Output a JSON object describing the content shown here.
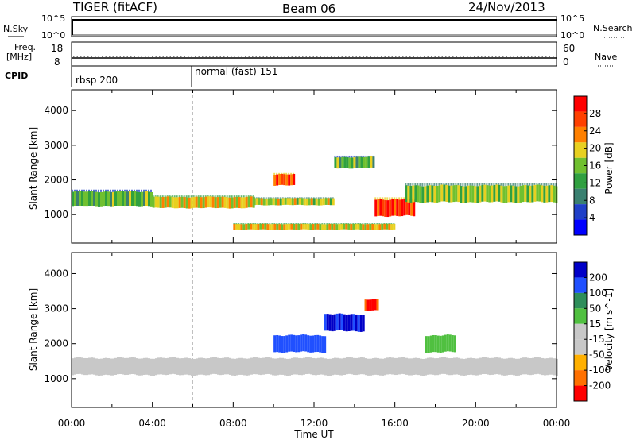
{
  "header": {
    "station": "TIGER (fitACF)",
    "beam": "Beam 06",
    "date": "24/Nov/2013"
  },
  "panels": {
    "nsky": {
      "left_label": "N.Sky",
      "right_label": "N.Search",
      "left_ticks": [
        "10^5",
        "10^0"
      ],
      "right_ticks": [
        "10^5",
        "10^0"
      ]
    },
    "freq": {
      "left_label_top": "Freq.",
      "left_label_bottom": "[MHz]",
      "left_ticks": [
        "18",
        "8"
      ],
      "right_ticks": [
        "60",
        "0"
      ],
      "right_label": "Nave"
    },
    "cpid": {
      "label": "CPID",
      "segments": [
        {
          "name": "rbsp 200",
          "start_hour": 0
        },
        {
          "name": "normal (fast) 151",
          "start_hour": 6.0
        }
      ]
    }
  },
  "colors": {
    "power": [
      "#0000ff",
      "#2040c8",
      "#3a8070",
      "#30a040",
      "#70c030",
      "#e8d020",
      "#ff8000",
      "#ff4000",
      "#ff0000"
    ],
    "velocity": [
      "#0000c8",
      "#2050ff",
      "#2e8e5a",
      "#50c040",
      "#c8c8c8",
      "#c8c8c8",
      "#ffb000",
      "#ff7000",
      "#ff0000"
    ]
  },
  "chart_data": [
    {
      "type": "heatmap",
      "title": "",
      "xlabel": "Time UT",
      "ylabel": "Slant Range [km]",
      "x_range": [
        "00:00",
        "24:00"
      ],
      "x_ticks": [
        "00:00",
        "04:00",
        "08:00",
        "12:00",
        "16:00",
        "20:00",
        "00:00"
      ],
      "ylim": [
        180,
        4600
      ],
      "y_ticks": [
        1000,
        2000,
        3000,
        4000
      ],
      "colorbar": {
        "label": "Power [dB]",
        "ticks": [
          4,
          8,
          12,
          16,
          20,
          24,
          28
        ],
        "range": [
          0,
          32
        ]
      },
      "echo_bands": [
        {
          "start_hour": 0.0,
          "end_hour": 4.0,
          "range_km": [
            1180,
            1720
          ],
          "level_db": 14
        },
        {
          "start_hour": 4.0,
          "end_hour": 9.0,
          "range_km": [
            1150,
            1550
          ],
          "level_db": 20
        },
        {
          "start_hour": 9.0,
          "end_hour": 13.0,
          "range_km": [
            1250,
            1500
          ],
          "level_db": 18
        },
        {
          "start_hour": 10.0,
          "end_hour": 11.0,
          "range_km": [
            1800,
            2200
          ],
          "level_db": 26
        },
        {
          "start_hour": 13.0,
          "end_hour": 15.0,
          "range_km": [
            2300,
            2700
          ],
          "level_db": 14
        },
        {
          "start_hour": 15.0,
          "end_hour": 17.0,
          "range_km": [
            900,
            1500
          ],
          "level_db": 28
        },
        {
          "start_hour": 16.5,
          "end_hour": 24.0,
          "range_km": [
            1300,
            1900
          ],
          "level_db": 16
        },
        {
          "start_hour": 8.0,
          "end_hour": 16.0,
          "range_km": [
            550,
            750
          ],
          "level_db": 20
        }
      ]
    },
    {
      "type": "heatmap",
      "title": "",
      "xlabel": "Time UT",
      "ylabel": "Slant Range [km]",
      "x_range": [
        "00:00",
        "24:00"
      ],
      "x_ticks": [
        "00:00",
        "04:00",
        "08:00",
        "12:00",
        "16:00",
        "20:00",
        "00:00"
      ],
      "ylim": [
        180,
        4600
      ],
      "y_ticks": [
        1000,
        2000,
        3000,
        4000
      ],
      "colorbar": {
        "label": "Velocity [m s^-1]",
        "ticks": [
          200,
          100,
          50,
          15,
          -15,
          -50,
          -100,
          -200
        ],
        "range": [
          -250,
          250
        ]
      },
      "echo_bands": [
        {
          "start_hour": 0.0,
          "end_hour": 24.0,
          "range_km": [
            1050,
            1650
          ],
          "velocity": 0
        },
        {
          "start_hour": 10.0,
          "end_hour": 12.5,
          "range_km": [
            1700,
            2300
          ],
          "velocity": 150
        },
        {
          "start_hour": 12.5,
          "end_hour": 14.5,
          "range_km": [
            2300,
            2900
          ],
          "velocity": 200
        },
        {
          "start_hour": 14.5,
          "end_hour": 15.2,
          "range_km": [
            2900,
            3300
          ],
          "velocity": -200
        },
        {
          "start_hour": 14.0,
          "end_hour": 17.0,
          "range_km": [
            1150,
            1350
          ],
          "velocity": -40
        },
        {
          "start_hour": 17.5,
          "end_hour": 19.0,
          "range_km": [
            1700,
            2300
          ],
          "velocity": 40
        }
      ]
    }
  ]
}
